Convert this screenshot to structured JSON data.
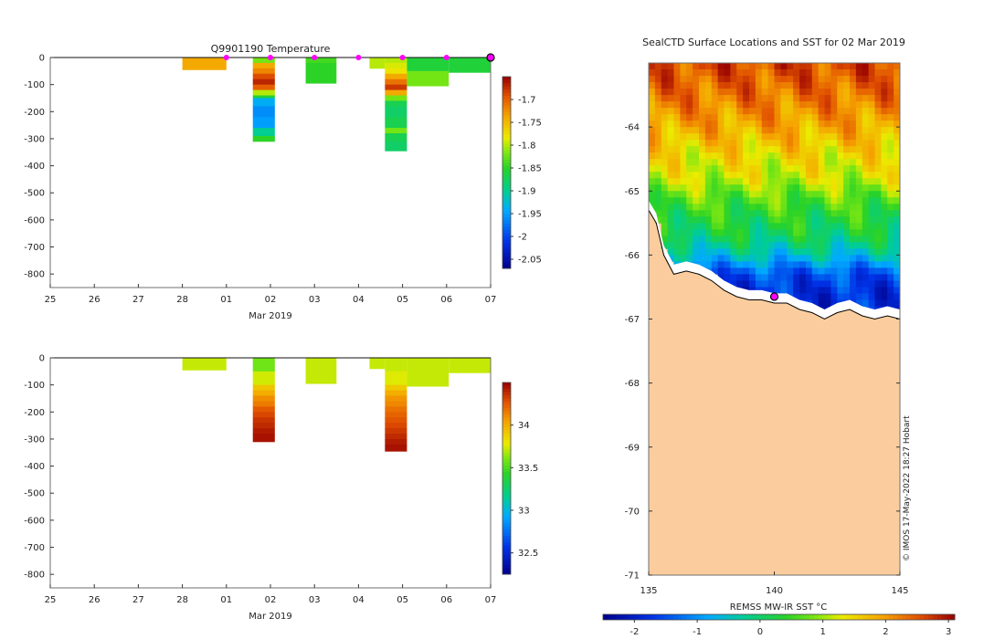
{
  "chart_data": [
    {
      "type": "heatmap",
      "title": "Q9901190  Temperature",
      "xlabel": "Mar 2019",
      "ylabel": "",
      "x_tick_labels": [
        "25",
        "26",
        "27",
        "28",
        "01",
        "02",
        "03",
        "04",
        "05",
        "06",
        "07"
      ],
      "x_tick_values": [
        0,
        1,
        2,
        3,
        4,
        5,
        6,
        7,
        8,
        9,
        10
      ],
      "xlim": [
        0,
        10
      ],
      "y_tick_labels": [
        "0",
        "-100",
        "-200",
        "-300",
        "-400",
        "-500",
        "-600",
        "-700",
        "-800"
      ],
      "y_tick_values": [
        0,
        -100,
        -200,
        -300,
        -400,
        -500,
        -600,
        -700,
        -800
      ],
      "ylim": [
        -850,
        0
      ],
      "clim": [
        -2.07,
        -1.65
      ],
      "profiles": [
        {
          "x0": 3.0,
          "x1": 4.0,
          "depths": [
            0,
            -45
          ],
          "values": [
            -1.74
          ]
        },
        {
          "x0": 4.6,
          "x1": 5.1,
          "depths": [
            0,
            -20,
            -40,
            -60,
            -80,
            -100,
            -120,
            -140,
            -150,
            -180,
            -220,
            -260,
            -290,
            -310
          ],
          "values": [
            -1.82,
            -1.74,
            -1.72,
            -1.69,
            -1.67,
            -1.7,
            -1.8,
            -1.86,
            -1.94,
            -1.96,
            -1.95,
            -1.9,
            -1.85
          ]
        },
        {
          "x0": 5.8,
          "x1": 6.5,
          "depths": [
            0,
            -20,
            -95
          ],
          "values": [
            -1.84,
            -1.85
          ]
        },
        {
          "x0": 7.25,
          "x1": 7.6,
          "depths": [
            0,
            -40
          ],
          "values": [
            -1.8
          ]
        },
        {
          "x0": 7.6,
          "x1": 8.1,
          "depths": [
            0,
            -20,
            -40,
            -60,
            -80,
            -100,
            -120,
            -140,
            -160,
            -180,
            -220,
            -260,
            -280,
            -310,
            -345
          ],
          "values": [
            -1.8,
            -1.79,
            -1.78,
            -1.74,
            -1.71,
            -1.68,
            -1.74,
            -1.82,
            -1.87,
            -1.88,
            -1.87,
            -1.82,
            -1.87,
            -1.88
          ]
        },
        {
          "x0": 8.1,
          "x1": 9.05,
          "depths": [
            0,
            -50,
            -105
          ],
          "values": [
            -1.86,
            -1.82
          ]
        },
        {
          "x0": 9.05,
          "x1": 10.0,
          "depths": [
            0,
            -55
          ],
          "values": [
            -1.86
          ]
        }
      ],
      "markers": {
        "color": "#ff00ff",
        "x": [
          4,
          5,
          6,
          7,
          8,
          9
        ],
        "end_marker_x": 10
      },
      "colorbar": {
        "tick_labels": [
          "-1.7",
          "-1.75",
          "-1.8",
          "-1.85",
          "-1.9",
          "-1.95",
          "-2",
          "-2.05"
        ],
        "tick_values": [
          -1.7,
          -1.75,
          -1.8,
          -1.85,
          -1.9,
          -1.95,
          -2.0,
          -2.05
        ]
      }
    },
    {
      "type": "heatmap",
      "title": "",
      "xlabel": "Mar 2019",
      "ylabel": "",
      "x_tick_labels": [
        "25",
        "26",
        "27",
        "28",
        "01",
        "02",
        "03",
        "04",
        "05",
        "06",
        "07"
      ],
      "x_tick_values": [
        0,
        1,
        2,
        3,
        4,
        5,
        6,
        7,
        8,
        9,
        10
      ],
      "xlim": [
        0,
        10
      ],
      "y_tick_labels": [
        "0",
        "-100",
        "-200",
        "-300",
        "-400",
        "-500",
        "-600",
        "-700",
        "-800"
      ],
      "y_tick_values": [
        0,
        -100,
        -200,
        -300,
        -400,
        -500,
        -600,
        -700,
        -800
      ],
      "ylim": [
        -850,
        0
      ],
      "clim": [
        32.25,
        34.5
      ],
      "profiles": [
        {
          "x0": 3.0,
          "x1": 4.0,
          "depths": [
            0,
            -45
          ],
          "values": [
            33.72
          ]
        },
        {
          "x0": 4.6,
          "x1": 5.1,
          "depths": [
            0,
            -50,
            -100,
            -120,
            -140,
            -160,
            -180,
            -200,
            -220,
            -240,
            -260,
            -280,
            -310
          ],
          "values": [
            33.58,
            33.74,
            33.92,
            34.0,
            34.1,
            34.15,
            34.25,
            34.3,
            34.35,
            34.38,
            34.42,
            34.45
          ]
        },
        {
          "x0": 5.8,
          "x1": 6.5,
          "depths": [
            0,
            -95
          ],
          "values": [
            33.72
          ]
        },
        {
          "x0": 7.25,
          "x1": 7.6,
          "depths": [
            0,
            -40
          ],
          "values": [
            33.72
          ]
        },
        {
          "x0": 7.6,
          "x1": 8.1,
          "depths": [
            0,
            -50,
            -100,
            -120,
            -140,
            -160,
            -180,
            -200,
            -220,
            -240,
            -260,
            -280,
            -300,
            -320,
            -345
          ],
          "values": [
            33.72,
            33.76,
            33.9,
            34.0,
            34.08,
            34.12,
            34.18,
            34.22,
            34.26,
            34.3,
            34.34,
            34.38,
            34.42,
            34.45
          ]
        },
        {
          "x0": 8.1,
          "x1": 9.05,
          "depths": [
            0,
            -105
          ],
          "values": [
            33.72
          ]
        },
        {
          "x0": 9.05,
          "x1": 10.0,
          "depths": [
            0,
            -55
          ],
          "values": [
            33.72
          ]
        }
      ],
      "colorbar": {
        "tick_labels": [
          "34",
          "33.5",
          "33",
          "32.5"
        ],
        "tick_values": [
          34,
          33.5,
          33,
          32.5
        ]
      }
    },
    {
      "type": "heatmap",
      "title": "SealCTD Surface Locations and SST for 02 Mar 2019",
      "xlabel": "",
      "ylabel": "",
      "x_tick_labels": [
        "135",
        "140",
        "145"
      ],
      "x_tick_values": [
        135,
        140,
        145
      ],
      "xlim": [
        135,
        145
      ],
      "y_tick_labels": [
        "-64",
        "-65",
        "-66",
        "-67",
        "-68",
        "-69",
        "-70",
        "-71"
      ],
      "y_tick_values": [
        -64,
        -65,
        -66,
        -67,
        -68,
        -69,
        -70,
        -71
      ],
      "ylim": [
        -71,
        -63
      ],
      "land_color": "#fbcd9e",
      "coastline": {
        "lon": [
          135.0,
          135.3,
          135.6,
          136.0,
          136.5,
          137.0,
          137.5,
          138.0,
          138.5,
          139.0,
          139.5,
          140.0,
          140.5,
          141.0,
          141.5,
          142.0,
          142.5,
          143.0,
          143.5,
          144.0,
          144.5,
          145.0
        ],
        "lat": [
          -65.3,
          -65.5,
          -66.0,
          -66.3,
          -66.25,
          -66.3,
          -66.4,
          -66.55,
          -66.65,
          -66.7,
          -66.7,
          -66.75,
          -66.75,
          -66.85,
          -66.9,
          -67.0,
          -66.9,
          -66.85,
          -66.95,
          -67.0,
          -66.95,
          -67.0
        ]
      },
      "surface_location": {
        "lon": 140.0,
        "lat": -66.65
      },
      "sst_field_by_latitude": {
        "lat": [
          -63.0,
          -63.5,
          -64.0,
          -64.5,
          -64.8,
          -65.1,
          -65.4,
          -65.7,
          -66.0,
          -66.3,
          -66.6
        ],
        "sst": [
          2.6,
          2.3,
          1.9,
          1.4,
          1.2,
          0.7,
          0.35,
          0.1,
          -0.5,
          -1.5,
          -1.8
        ]
      },
      "annotation": "© IMOS 17-May-2022 18:27 Hobart",
      "colorbar": {
        "label": "REMSS MW-IR SST °C",
        "tick_labels": [
          "-2",
          "-1",
          "0",
          "1",
          "2",
          "3"
        ],
        "tick_values": [
          -2,
          -1,
          0,
          1,
          2,
          3
        ],
        "range": [
          -2.5,
          3.1
        ]
      }
    }
  ]
}
